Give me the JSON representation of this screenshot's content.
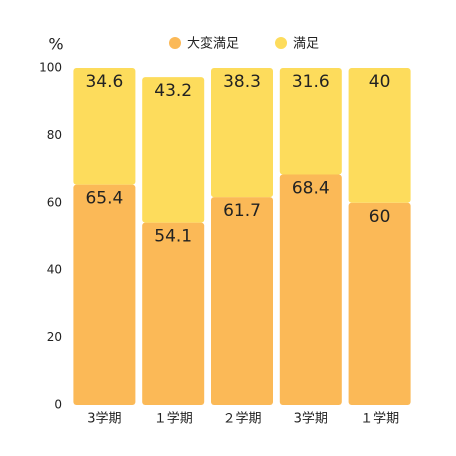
{
  "chart_data": {
    "type": "stacked-bar",
    "y_axis_label": "%",
    "categories": [
      "3学期",
      "１学期",
      "２学期",
      "3学期",
      "１学期"
    ],
    "series": [
      {
        "name": "大変満足",
        "color": "#fbb957",
        "values": [
          65.4,
          54.1,
          61.7,
          68.4,
          60
        ]
      },
      {
        "name": "満足",
        "color": "#fddc5c",
        "values": [
          34.6,
          43.2,
          38.3,
          31.6,
          40
        ]
      }
    ],
    "ylim": [
      0,
      100
    ],
    "yticks": [
      0,
      20,
      40,
      60,
      80,
      100
    ],
    "grid": false
  }
}
